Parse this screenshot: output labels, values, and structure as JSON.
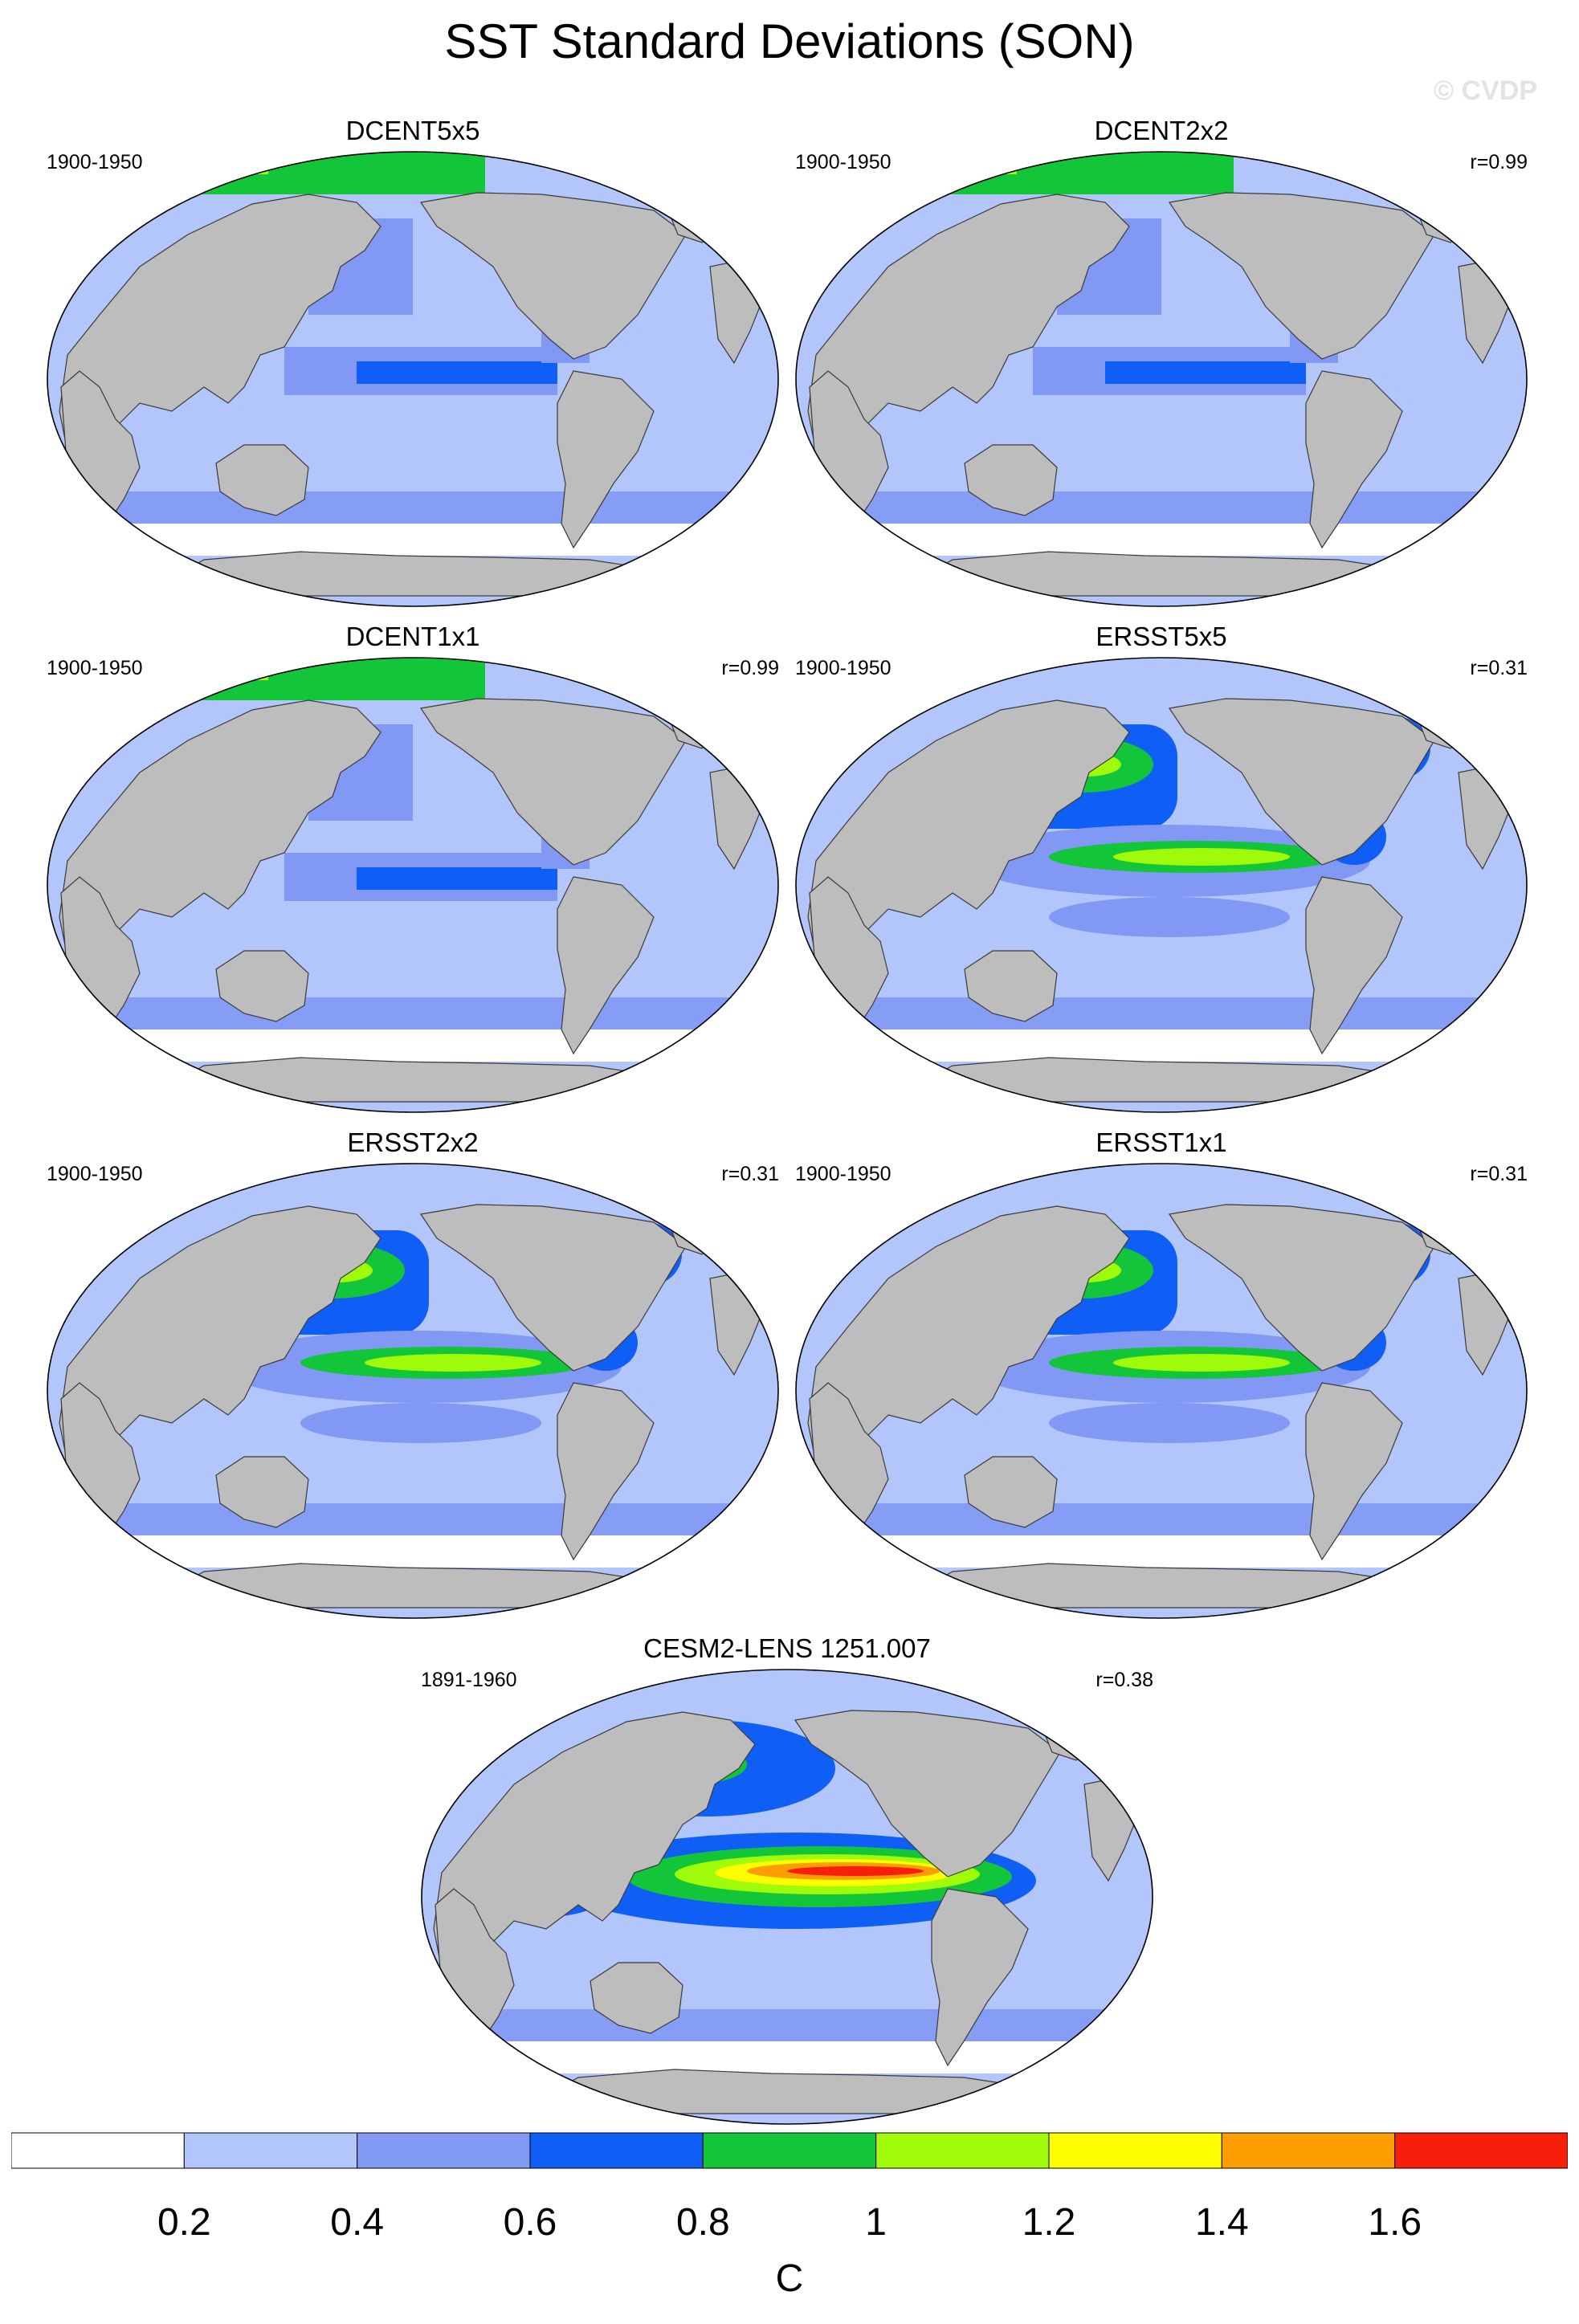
{
  "title": "SST Standard Deviations (SON)",
  "watermark": "© CVDP",
  "panels": [
    {
      "name": "DCENT5x5",
      "period": "1900-1950",
      "corr": "",
      "style": "coarse"
    },
    {
      "name": "DCENT2x2",
      "period": "1900-1950",
      "corr": "r=0.99",
      "style": "coarse"
    },
    {
      "name": "DCENT1x1",
      "period": "1900-1950",
      "corr": "r=0.99",
      "style": "coarse"
    },
    {
      "name": "ERSST5x5",
      "period": "1900-1950",
      "corr": "r=0.31",
      "style": "ersst"
    },
    {
      "name": "ERSST2x2",
      "period": "1900-1950",
      "corr": "r=0.31",
      "style": "ersst"
    },
    {
      "name": "ERSST1x1",
      "period": "1900-1950",
      "corr": "r=0.31",
      "style": "ersst"
    },
    {
      "name": "CESM2-LENS 1251.007",
      "period": "1891-1960",
      "corr": "r=0.38",
      "style": "model"
    }
  ],
  "colorbar": {
    "unit": "C",
    "colors": [
      "#ffffff",
      "#b3c6fb",
      "#8198f5",
      "#0f5ff6",
      "#13c539",
      "#a0fb0a",
      "#fefe00",
      "#fd9d00",
      "#f71e0c"
    ],
    "labels": [
      "0.2",
      "0.4",
      "0.6",
      "0.8",
      "1",
      "1.2",
      "1.4",
      "1.6"
    ]
  },
  "colors": {
    "land": "#bdbdbd",
    "ocean_base": "#b3c6fb"
  }
}
